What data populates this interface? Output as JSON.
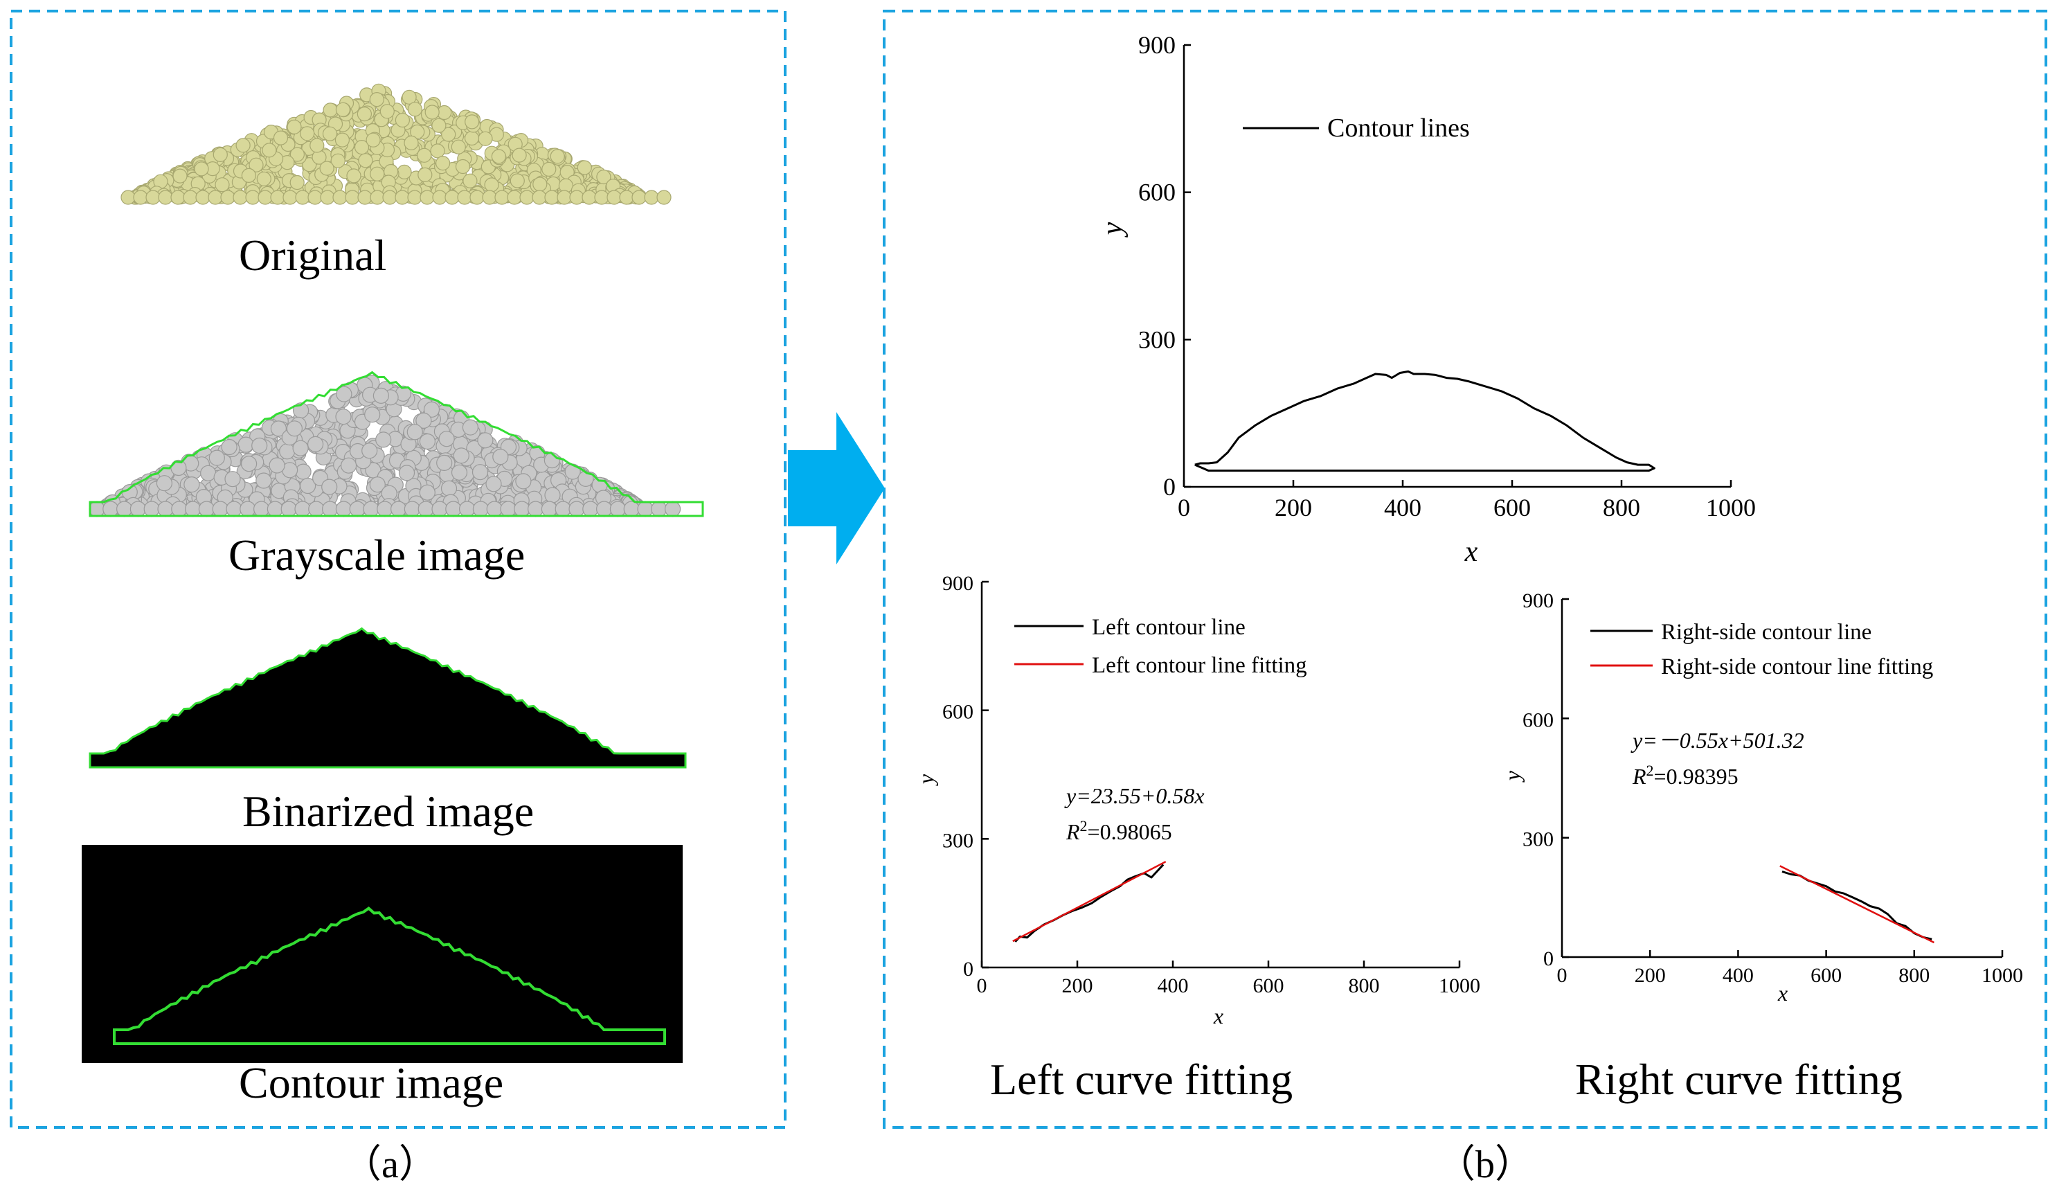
{
  "panel_a": {
    "label": "（a）",
    "items": [
      {
        "caption": "Original"
      },
      {
        "caption": "Grayscale image"
      },
      {
        "caption": "Binarized image"
      },
      {
        "caption": "Contour image"
      }
    ]
  },
  "panel_b": {
    "label": "（b）",
    "captions": {
      "left": "Left curve fitting",
      "right": "Right curve fitting"
    }
  },
  "colors": {
    "dash_border": "#1ba3e0",
    "arrow": "#00aeef",
    "particle_original": "#d8d89a",
    "particle_gray": "#c8c8c8",
    "contour_green": "#33dd33",
    "fit_red": "#e01010"
  },
  "chart_data": [
    {
      "type": "line",
      "xlabel": "x",
      "ylabel": "y",
      "xlim": [
        0,
        1000
      ],
      "ylim": [
        0,
        900
      ],
      "xticks": [
        0,
        200,
        400,
        600,
        800,
        1000
      ],
      "yticks": [
        0,
        300,
        600,
        900
      ],
      "legend_position": "top-left",
      "series": [
        {
          "name": "Contour lines",
          "color": "#000000",
          "x": [
            20,
            30,
            45,
            60,
            80,
            100,
            130,
            160,
            190,
            220,
            250,
            280,
            310,
            330,
            350,
            370,
            380,
            395,
            410,
            420,
            440,
            460,
            480,
            500,
            520,
            550,
            580,
            610,
            640,
            670,
            700,
            730,
            760,
            790,
            810,
            830,
            850,
            860,
            850,
            600,
            300,
            45,
            20
          ],
          "y": [
            45,
            48,
            48,
            50,
            70,
            100,
            125,
            145,
            160,
            175,
            185,
            200,
            210,
            220,
            230,
            228,
            222,
            232,
            235,
            230,
            230,
            228,
            222,
            220,
            215,
            205,
            195,
            180,
            160,
            145,
            125,
            100,
            80,
            60,
            50,
            45,
            45,
            38,
            33,
            33,
            33,
            33,
            45
          ]
        }
      ]
    },
    {
      "type": "line",
      "xlabel": "x",
      "ylabel": "y",
      "xlim": [
        0,
        1000
      ],
      "ylim": [
        0,
        900
      ],
      "xticks": [
        0,
        200,
        400,
        600,
        800,
        1000
      ],
      "yticks": [
        0,
        300,
        600,
        900
      ],
      "legend_position": "top-left",
      "annotation": {
        "equation": "y=23.55+0.58x",
        "r2_label": "R",
        "r2_value": "=0.98065"
      },
      "series": [
        {
          "name": "Left contour line",
          "color": "#000000",
          "x": [
            70,
            80,
            95,
            110,
            130,
            150,
            170,
            190,
            210,
            230,
            250,
            270,
            290,
            305,
            320,
            340,
            355,
            370,
            380
          ],
          "y": [
            60,
            72,
            70,
            85,
            100,
            110,
            122,
            132,
            140,
            150,
            165,
            178,
            190,
            205,
            212,
            220,
            210,
            228,
            240
          ]
        },
        {
          "name": "Left contour line fitting",
          "color": "#e01010",
          "x": [
            65,
            385
          ],
          "y": [
            61.25,
            246.85
          ]
        }
      ]
    },
    {
      "type": "line",
      "xlabel": "x",
      "ylabel": "y",
      "xlim": [
        0,
        1000
      ],
      "ylim": [
        0,
        900
      ],
      "xticks": [
        0,
        200,
        400,
        600,
        800,
        1000
      ],
      "yticks": [
        0,
        300,
        600,
        900
      ],
      "legend_position": "top-left",
      "annotation": {
        "equation": "y=－0.55x+501.32",
        "r2_label": "R",
        "r2_value": "=0.98395"
      },
      "series": [
        {
          "name": "Right-side contour line",
          "color": "#000000",
          "x": [
            500,
            520,
            540,
            560,
            580,
            600,
            620,
            640,
            660,
            680,
            700,
            720,
            740,
            760,
            780,
            800,
            820,
            840
          ],
          "y": [
            215,
            208,
            205,
            192,
            185,
            178,
            165,
            160,
            150,
            140,
            128,
            122,
            108,
            85,
            78,
            60,
            50,
            45
          ]
        },
        {
          "name": "Right-side contour line fitting",
          "color": "#e01010",
          "x": [
            495,
            845
          ],
          "y": [
            229.07,
            36.57
          ]
        }
      ]
    }
  ]
}
